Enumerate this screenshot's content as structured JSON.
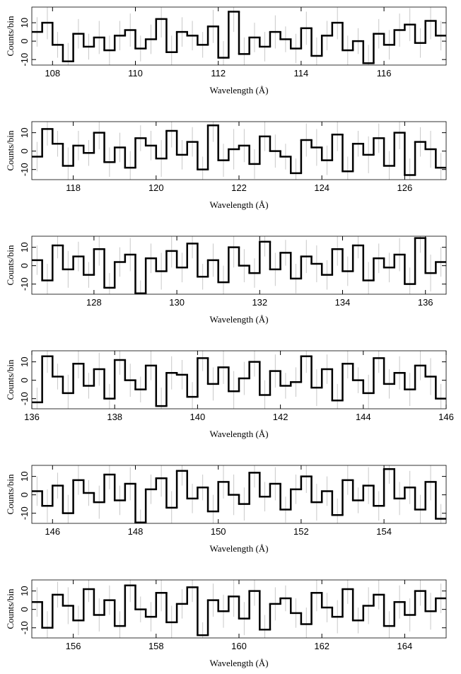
{
  "chart_data": [
    {
      "type": "histogram",
      "x_label": "Wavelength (Å)",
      "y_label": "Counts/bin",
      "color": "#000000",
      "error_color": "#bbbbbb",
      "xlim": [
        107.5,
        117.5
      ],
      "ylim": [
        -13,
        18.5
      ],
      "xticks": [
        108,
        110,
        112,
        114,
        116
      ],
      "yticks": [
        -10,
        0,
        10
      ],
      "bins": [
        107.5,
        107.75,
        108,
        108.25,
        108.5,
        108.75,
        109,
        109.25,
        109.5,
        109.75,
        110,
        110.25,
        110.5,
        110.75,
        111,
        111.25,
        111.5,
        111.75,
        112,
        112.25,
        112.5,
        112.75,
        113,
        113.25,
        113.5,
        113.75,
        114,
        114.25,
        114.5,
        114.75,
        115,
        115.25,
        115.5,
        115.75,
        116,
        116.25,
        116.5,
        116.75,
        117,
        117.25,
        117.5
      ],
      "values": [
        5,
        10,
        -2,
        -11,
        4,
        -3,
        2,
        -5,
        3,
        6,
        -4,
        1,
        12,
        -6,
        5,
        3,
        -2,
        8,
        -9,
        16,
        -7,
        2,
        -3,
        5,
        1,
        -4,
        7,
        -8,
        3,
        10,
        -5,
        0,
        -12,
        4,
        -2,
        6,
        9,
        -1,
        11,
        3
      ],
      "errors": [
        8,
        9,
        7,
        10,
        8,
        7,
        9,
        8,
        8,
        9,
        7,
        8,
        10,
        9,
        8,
        8,
        7,
        9,
        9,
        11,
        9,
        8,
        8,
        9,
        7,
        8,
        9,
        10,
        8,
        9,
        8,
        7,
        10,
        8,
        8,
        9,
        9,
        8,
        10,
        8
      ]
    },
    {
      "type": "histogram",
      "x_label": "Wavelength (Å)",
      "y_label": "Counts/bin",
      "color": "#000000",
      "error_color": "#bbbbbb",
      "xlim": [
        117,
        127
      ],
      "ylim": [
        -15.5,
        16
      ],
      "xticks": [
        118,
        120,
        122,
        124,
        126
      ],
      "yticks": [
        -10,
        0,
        10
      ],
      "bins": [
        117,
        117.25,
        117.5,
        117.75,
        118,
        118.25,
        118.5,
        118.75,
        119,
        119.25,
        119.5,
        119.75,
        120,
        120.25,
        120.5,
        120.75,
        121,
        121.25,
        121.5,
        121.75,
        122,
        122.25,
        122.5,
        122.75,
        123,
        123.25,
        123.5,
        123.75,
        124,
        124.25,
        124.5,
        124.75,
        125,
        125.25,
        125.5,
        125.75,
        126,
        126.25,
        126.5,
        126.75,
        127
      ],
      "values": [
        -3,
        12,
        4,
        -8,
        3,
        -1,
        10,
        -6,
        2,
        -9,
        7,
        3,
        -4,
        11,
        -2,
        5,
        -10,
        14,
        -5,
        1,
        3,
        -7,
        8,
        0,
        -3,
        -12,
        6,
        2,
        -5,
        9,
        -11,
        4,
        -2,
        7,
        -8,
        10,
        -13,
        5,
        1,
        -9
      ],
      "errors": [
        8,
        9,
        7,
        10,
        8,
        7,
        9,
        8,
        8,
        9,
        7,
        8,
        10,
        9,
        8,
        8,
        7,
        9,
        9,
        11,
        9,
        8,
        8,
        9,
        7,
        8,
        9,
        10,
        8,
        9,
        8,
        7,
        10,
        8,
        8,
        9,
        9,
        8,
        10,
        8
      ]
    },
    {
      "type": "histogram",
      "x_label": "Wavelength (Å)",
      "y_label": "Counts/bin",
      "color": "#000000",
      "error_color": "#bbbbbb",
      "xlim": [
        126.5,
        136.5
      ],
      "ylim": [
        -15.5,
        16
      ],
      "xticks": [
        128,
        130,
        132,
        134,
        136
      ],
      "yticks": [
        -10,
        0,
        10
      ],
      "bins": [
        126.5,
        126.75,
        127,
        127.25,
        127.5,
        127.75,
        128,
        128.25,
        128.5,
        128.75,
        129,
        129.25,
        129.5,
        129.75,
        130,
        130.25,
        130.5,
        130.75,
        131,
        131.25,
        131.5,
        131.75,
        132,
        132.25,
        132.5,
        132.75,
        133,
        133.25,
        133.5,
        133.75,
        134,
        134.25,
        134.5,
        134.75,
        135,
        135.25,
        135.5,
        135.75,
        136,
        136.25,
        136.5
      ],
      "values": [
        3,
        -8,
        11,
        -2,
        5,
        -5,
        9,
        -12,
        2,
        6,
        -15,
        4,
        -3,
        8,
        -1,
        12,
        -6,
        3,
        -9,
        10,
        0,
        -4,
        13,
        -2,
        7,
        -7,
        5,
        1,
        -5,
        9,
        -3,
        11,
        -8,
        4,
        -1,
        6,
        -10,
        15,
        -4,
        2
      ],
      "errors": [
        8,
        9,
        7,
        10,
        8,
        7,
        9,
        8,
        8,
        9,
        7,
        8,
        10,
        9,
        8,
        8,
        7,
        9,
        9,
        11,
        9,
        8,
        8,
        9,
        7,
        8,
        9,
        10,
        8,
        9,
        8,
        7,
        10,
        8,
        8,
        9,
        9,
        8,
        10,
        8
      ]
    },
    {
      "type": "histogram",
      "x_label": "Wavelength (Å)",
      "y_label": "Counts/bin",
      "color": "#000000",
      "error_color": "#bbbbbb",
      "xlim": [
        136,
        146
      ],
      "ylim": [
        -15.5,
        16
      ],
      "xticks": [
        136,
        138,
        140,
        142,
        144,
        146
      ],
      "yticks": [
        -10,
        0,
        10
      ],
      "bins": [
        136,
        136.25,
        136.5,
        136.75,
        137,
        137.25,
        137.5,
        137.75,
        138,
        138.25,
        138.5,
        138.75,
        139,
        139.25,
        139.5,
        139.75,
        140,
        140.25,
        140.5,
        140.75,
        141,
        141.25,
        141.5,
        141.75,
        142,
        142.25,
        142.5,
        142.75,
        143,
        143.25,
        143.5,
        143.75,
        144,
        144.25,
        144.5,
        144.75,
        145,
        145.25,
        145.5,
        145.75,
        146
      ],
      "values": [
        -12,
        13,
        2,
        -7,
        9,
        -3,
        6,
        -10,
        11,
        0,
        -5,
        8,
        -14,
        4,
        3,
        -9,
        12,
        -2,
        7,
        -6,
        1,
        10,
        -8,
        5,
        -3,
        -1,
        13,
        -4,
        6,
        -11,
        9,
        0,
        -7,
        12,
        -2,
        4,
        -5,
        8,
        2,
        -10
      ],
      "errors": [
        8,
        9,
        7,
        10,
        8,
        7,
        9,
        8,
        8,
        9,
        7,
        8,
        10,
        9,
        8,
        8,
        7,
        9,
        9,
        11,
        9,
        8,
        8,
        9,
        7,
        8,
        9,
        10,
        8,
        9,
        8,
        7,
        10,
        8,
        8,
        9,
        9,
        8,
        10,
        8
      ]
    },
    {
      "type": "histogram",
      "x_label": "Wavelength (Å)",
      "y_label": "Counts/bin",
      "color": "#000000",
      "error_color": "#bbbbbb",
      "xlim": [
        145.5,
        155.5
      ],
      "ylim": [
        -15.5,
        16
      ],
      "xticks": [
        146,
        148,
        150,
        152,
        154
      ],
      "yticks": [
        -10,
        0,
        10
      ],
      "bins": [
        145.5,
        145.75,
        146,
        146.25,
        146.5,
        146.75,
        147,
        147.25,
        147.5,
        147.75,
        148,
        148.25,
        148.5,
        148.75,
        149,
        149.25,
        149.5,
        149.75,
        150,
        150.25,
        150.5,
        150.75,
        151,
        151.25,
        151.5,
        151.75,
        152,
        152.25,
        152.5,
        152.75,
        153,
        153.25,
        153.5,
        153.75,
        154,
        154.25,
        154.5,
        154.75,
        155,
        155.25,
        155.5
      ],
      "values": [
        2,
        -6,
        5,
        -10,
        8,
        1,
        -4,
        11,
        -3,
        6,
        -15,
        3,
        9,
        -7,
        13,
        -2,
        4,
        -9,
        7,
        0,
        -5,
        12,
        -1,
        6,
        -8,
        3,
        10,
        -4,
        2,
        -11,
        8,
        -3,
        5,
        -6,
        14,
        -2,
        4,
        -8,
        7,
        -13
      ],
      "errors": [
        8,
        9,
        7,
        10,
        8,
        7,
        9,
        8,
        8,
        9,
        7,
        8,
        10,
        9,
        8,
        8,
        7,
        9,
        9,
        11,
        9,
        8,
        8,
        9,
        7,
        8,
        9,
        10,
        8,
        9,
        8,
        7,
        10,
        8,
        8,
        9,
        9,
        8,
        10,
        8
      ]
    },
    {
      "type": "histogram",
      "x_label": "Wavelength (Å)",
      "y_label": "Counts/bin",
      "color": "#000000",
      "error_color": "#bbbbbb",
      "xlim": [
        155,
        165
      ],
      "ylim": [
        -15.5,
        16
      ],
      "xticks": [
        156,
        158,
        160,
        162,
        164
      ],
      "yticks": [
        -10,
        0,
        10
      ],
      "bins": [
        155,
        155.25,
        155.5,
        155.75,
        156,
        156.25,
        156.5,
        156.75,
        157,
        157.25,
        157.5,
        157.75,
        158,
        158.25,
        158.5,
        158.75,
        159,
        159.25,
        159.5,
        159.75,
        160,
        160.25,
        160.5,
        160.75,
        161,
        161.25,
        161.5,
        161.75,
        162,
        162.25,
        162.5,
        162.75,
        163,
        163.25,
        163.5,
        163.75,
        164,
        164.25,
        164.5,
        164.75,
        165
      ],
      "values": [
        4,
        -10,
        8,
        2,
        -6,
        11,
        -3,
        5,
        -9,
        13,
        0,
        -4,
        9,
        -7,
        3,
        12,
        -14,
        5,
        -1,
        7,
        -5,
        10,
        -11,
        3,
        6,
        -2,
        -8,
        9,
        1,
        -4,
        11,
        -6,
        2,
        8,
        -9,
        4,
        -3,
        10,
        -1,
        6
      ],
      "errors": [
        8,
        9,
        7,
        10,
        8,
        7,
        9,
        8,
        8,
        9,
        7,
        8,
        10,
        9,
        8,
        8,
        7,
        9,
        9,
        11,
        9,
        8,
        8,
        9,
        7,
        8,
        9,
        10,
        8,
        9,
        8,
        7,
        10,
        8,
        8,
        9,
        9,
        8,
        10,
        8
      ]
    }
  ]
}
